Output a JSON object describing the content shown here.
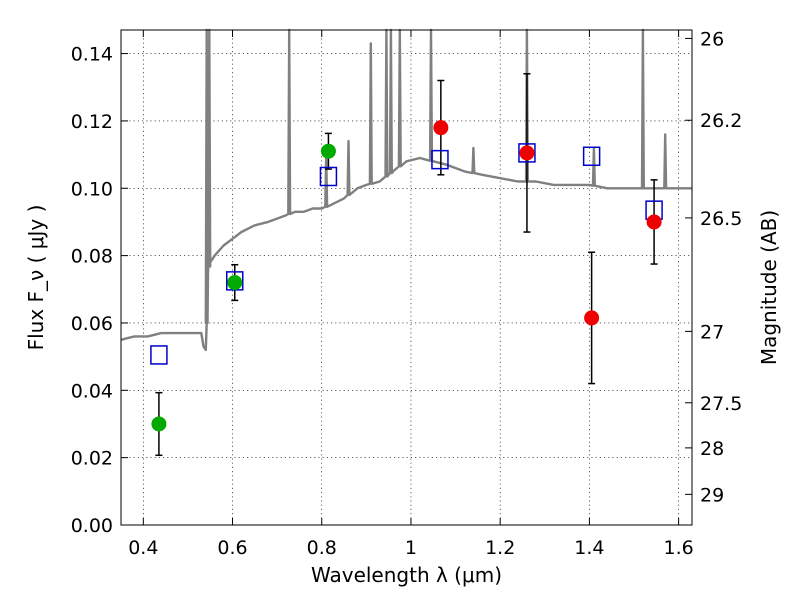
{
  "chart_data": {
    "type": "scatter",
    "xlabel": "Wavelength  λ (μm)",
    "ylabel": "Flux  F_ν  ( μJy )",
    "y2label": "Magnitude (AB)",
    "xlim": [
      0.35,
      1.63
    ],
    "ylim": [
      0.0,
      0.147
    ],
    "x_ticks": [
      0.4,
      0.6,
      0.8,
      1.0,
      1.2,
      1.4,
      1.6
    ],
    "x_tick_labels": [
      "0.4",
      "0.6",
      "0.8",
      "1",
      "1.2",
      "1.4",
      "1.6"
    ],
    "y_ticks": [
      0.0,
      0.02,
      0.04,
      0.06,
      0.08,
      0.1,
      0.12,
      0.14
    ],
    "y_tick_labels": [
      "0.00",
      "0.02",
      "0.04",
      "0.06",
      "0.08",
      "0.10",
      "0.12",
      "0.14"
    ],
    "y2_ticks": [
      {
        "label": "26",
        "flux": 0.1445
      },
      {
        "label": "26.2",
        "flux": 0.1202
      },
      {
        "label": "26.5",
        "flux": 0.0912
      },
      {
        "label": "27",
        "flux": 0.0575
      },
      {
        "label": "27.5",
        "flux": 0.0363
      },
      {
        "label": "28",
        "flux": 0.0229
      },
      {
        "label": "29",
        "flux": 0.0091
      }
    ],
    "grid": true,
    "colors": {
      "template": "#808080",
      "model": "#0000cc",
      "optical": "#00aa00",
      "nir": "#ee0000",
      "errorbar": "#000000"
    },
    "series": [
      {
        "kind": "template_spectrum",
        "x": [
          0.35,
          0.38,
          0.41,
          0.44,
          0.47,
          0.5,
          0.53,
          0.535,
          0.54,
          0.542,
          0.545,
          0.55,
          0.56,
          0.58,
          0.6,
          0.62,
          0.65,
          0.68,
          0.7,
          0.72,
          0.74,
          0.76,
          0.78,
          0.8,
          0.82,
          0.85,
          0.88,
          0.9,
          0.93,
          0.96,
          0.99,
          1.02,
          1.05,
          1.08,
          1.12,
          1.16,
          1.2,
          1.24,
          1.28,
          1.32,
          1.36,
          1.4,
          1.44,
          1.48,
          1.52,
          1.56,
          1.6,
          1.63
        ],
        "y": [
          0.055,
          0.056,
          0.056,
          0.057,
          0.057,
          0.057,
          0.057,
          0.053,
          0.052,
          0.06,
          0.075,
          0.078,
          0.08,
          0.083,
          0.085,
          0.087,
          0.089,
          0.09,
          0.091,
          0.092,
          0.093,
          0.093,
          0.094,
          0.094,
          0.095,
          0.097,
          0.1,
          0.101,
          0.102,
          0.105,
          0.108,
          0.109,
          0.108,
          0.107,
          0.105,
          0.104,
          0.103,
          0.102,
          0.102,
          0.101,
          0.101,
          0.101,
          0.1,
          0.1,
          0.1,
          0.1,
          0.1,
          0.1
        ],
        "emission_lines": [
          {
            "x": 0.542,
            "peak": 0.147
          },
          {
            "x": 0.548,
            "peak": 0.147
          },
          {
            "x": 0.727,
            "peak": 0.147
          },
          {
            "x": 0.81,
            "peak": 0.11
          },
          {
            "x": 0.86,
            "peak": 0.114
          },
          {
            "x": 0.91,
            "peak": 0.143
          },
          {
            "x": 0.945,
            "peak": 0.147
          },
          {
            "x": 0.955,
            "peak": 0.147
          },
          {
            "x": 0.975,
            "peak": 0.147
          },
          {
            "x": 1.045,
            "peak": 0.147
          },
          {
            "x": 1.14,
            "peak": 0.112
          },
          {
            "x": 1.26,
            "peak": 0.147
          },
          {
            "x": 1.41,
            "peak": 0.112
          },
          {
            "x": 1.52,
            "peak": 0.147
          },
          {
            "x": 1.57,
            "peak": 0.116
          }
        ]
      },
      {
        "kind": "model_photometry",
        "marker": "open-square",
        "points": [
          {
            "x": 0.435,
            "y": 0.0505
          },
          {
            "x": 0.605,
            "y": 0.0725
          },
          {
            "x": 0.815,
            "y": 0.1035
          },
          {
            "x": 1.065,
            "y": 0.1085
          },
          {
            "x": 1.26,
            "y": 0.1105
          },
          {
            "x": 1.405,
            "y": 0.1095
          },
          {
            "x": 1.545,
            "y": 0.0935
          }
        ]
      },
      {
        "kind": "optical_photometry",
        "marker": "filled-circle",
        "points": [
          {
            "x": 0.435,
            "y": 0.03,
            "err": 0.0093
          },
          {
            "x": 0.605,
            "y": 0.072,
            "err": 0.0053
          },
          {
            "x": 0.815,
            "y": 0.111,
            "err": 0.0053
          }
        ]
      },
      {
        "kind": "nir_photometry",
        "marker": "filled-circle",
        "points": [
          {
            "x": 1.067,
            "y": 0.118,
            "err": 0.014
          },
          {
            "x": 1.26,
            "y": 0.1105,
            "err": 0.0235
          },
          {
            "x": 1.405,
            "y": 0.0615,
            "err": 0.0195
          },
          {
            "x": 1.545,
            "y": 0.09,
            "err": 0.0125
          }
        ]
      }
    ]
  }
}
